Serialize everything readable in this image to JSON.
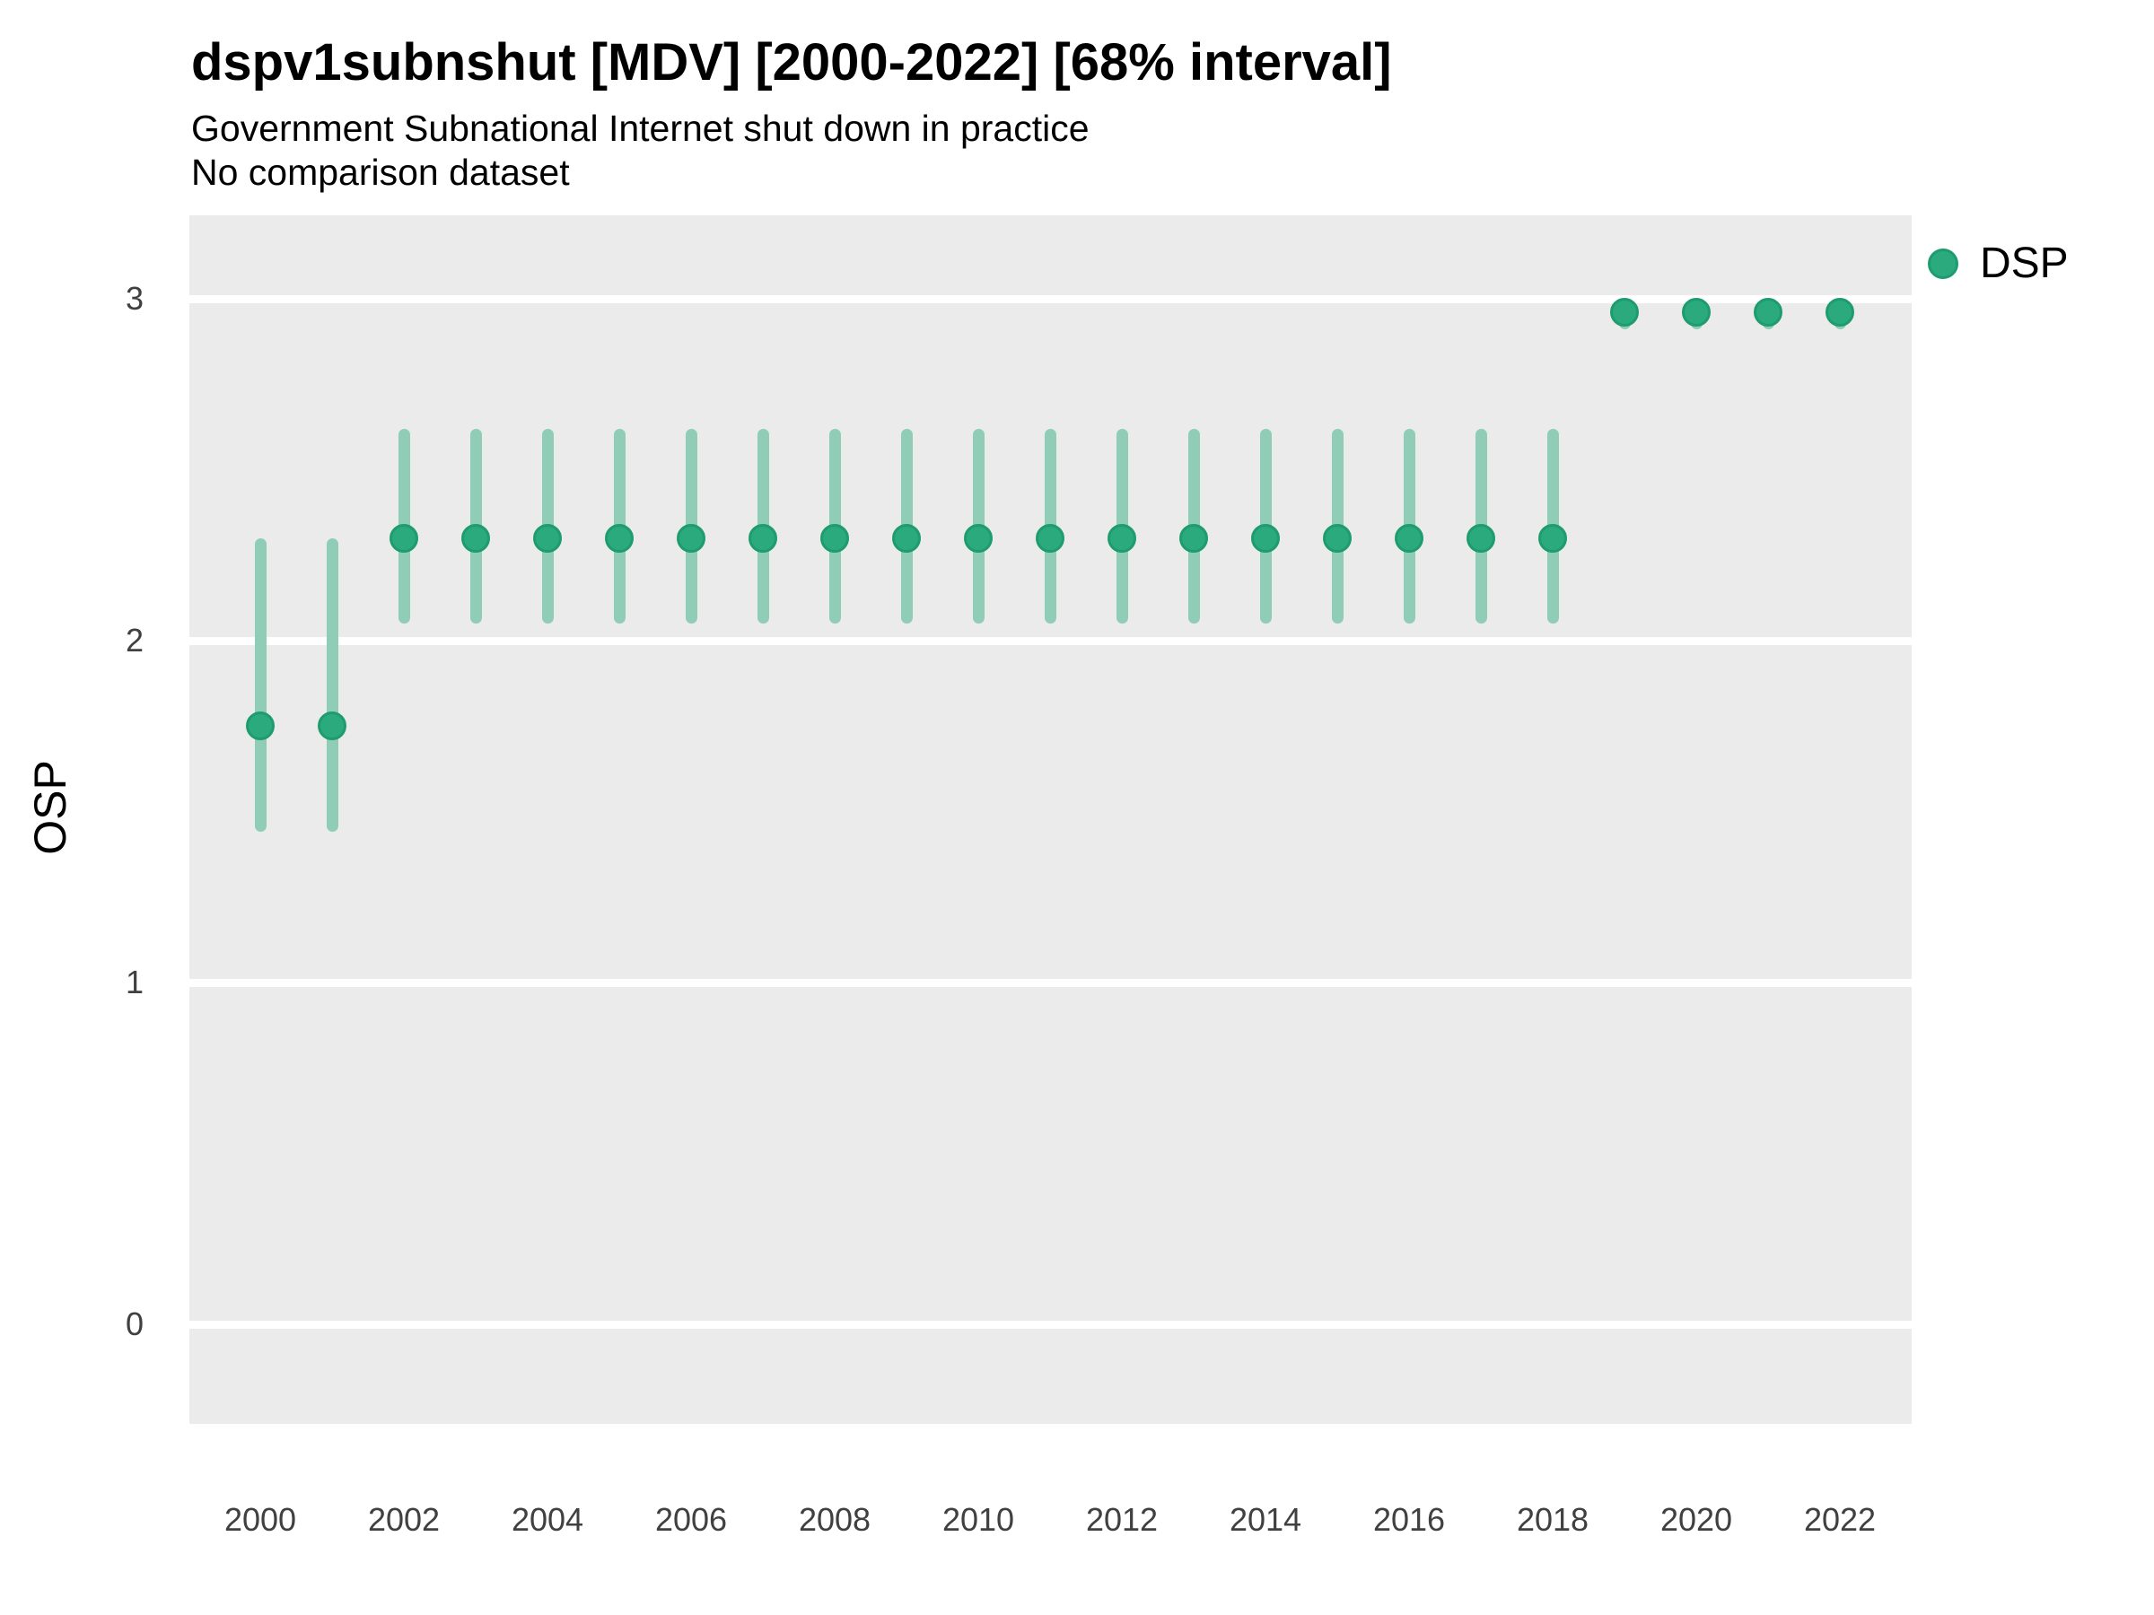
{
  "title": "dspv1subnshut [MDV] [2000-2022] [68% interval]",
  "subtitle": "Government Subnational Internet shut down in practice",
  "comparison_note": "No comparison dataset",
  "legend": {
    "position": "right",
    "entries": [
      {
        "label": "DSP",
        "marker": "circle-icon",
        "color": "#2BAA7D"
      }
    ]
  },
  "colors": {
    "point": "#2BAA7D",
    "point_ring": "#1E9C70",
    "interval_bar": "#8FCDB6",
    "panel_background": "#EBEBEB",
    "gridline": "#FFFFFF",
    "tick_text": "#404040"
  },
  "chart_data": {
    "type": "scatter",
    "title": "dspv1subnshut [MDV] [2000-2022] [68% interval]",
    "subtitle": "Government Subnational Internet shut down in practice",
    "annotation": "No comparison dataset",
    "xlabel": "",
    "ylabel": "OSP",
    "interval_level": "68%",
    "ylim": [
      0,
      3
    ],
    "xlim": [
      1999,
      2023
    ],
    "y_ticks": [
      0,
      1,
      2,
      3
    ],
    "x_ticks": [
      2000,
      2002,
      2004,
      2006,
      2008,
      2010,
      2012,
      2014,
      2016,
      2018,
      2020,
      2022
    ],
    "grid": "horizontal-only",
    "legend_position": "right",
    "series": [
      {
        "name": "DSP",
        "color": "#2BAA7D",
        "interval_color": "#8FCDB6",
        "points": [
          {
            "year": 2000,
            "est": 1.75,
            "lo": 1.44,
            "hi": 2.3
          },
          {
            "year": 2001,
            "est": 1.75,
            "lo": 1.44,
            "hi": 2.3
          },
          {
            "year": 2002,
            "est": 2.3,
            "lo": 2.05,
            "hi": 2.62
          },
          {
            "year": 2003,
            "est": 2.3,
            "lo": 2.05,
            "hi": 2.62
          },
          {
            "year": 2004,
            "est": 2.3,
            "lo": 2.05,
            "hi": 2.62
          },
          {
            "year": 2005,
            "est": 2.3,
            "lo": 2.05,
            "hi": 2.62
          },
          {
            "year": 2006,
            "est": 2.3,
            "lo": 2.05,
            "hi": 2.62
          },
          {
            "year": 2007,
            "est": 2.3,
            "lo": 2.05,
            "hi": 2.62
          },
          {
            "year": 2008,
            "est": 2.3,
            "lo": 2.05,
            "hi": 2.62
          },
          {
            "year": 2009,
            "est": 2.3,
            "lo": 2.05,
            "hi": 2.62
          },
          {
            "year": 2010,
            "est": 2.3,
            "lo": 2.05,
            "hi": 2.62
          },
          {
            "year": 2011,
            "est": 2.3,
            "lo": 2.05,
            "hi": 2.62
          },
          {
            "year": 2012,
            "est": 2.3,
            "lo": 2.05,
            "hi": 2.62
          },
          {
            "year": 2013,
            "est": 2.3,
            "lo": 2.05,
            "hi": 2.62
          },
          {
            "year": 2014,
            "est": 2.3,
            "lo": 2.05,
            "hi": 2.62
          },
          {
            "year": 2015,
            "est": 2.3,
            "lo": 2.05,
            "hi": 2.62
          },
          {
            "year": 2016,
            "est": 2.3,
            "lo": 2.05,
            "hi": 2.62
          },
          {
            "year": 2017,
            "est": 2.3,
            "lo": 2.05,
            "hi": 2.62
          },
          {
            "year": 2018,
            "est": 2.3,
            "lo": 2.05,
            "hi": 2.62
          },
          {
            "year": 2019,
            "est": 2.96,
            "lo": 2.91,
            "hi": 3.0
          },
          {
            "year": 2020,
            "est": 2.96,
            "lo": 2.91,
            "hi": 3.0
          },
          {
            "year": 2021,
            "est": 2.96,
            "lo": 2.91,
            "hi": 3.0
          },
          {
            "year": 2022,
            "est": 2.96,
            "lo": 2.91,
            "hi": 3.0
          }
        ]
      }
    ]
  }
}
